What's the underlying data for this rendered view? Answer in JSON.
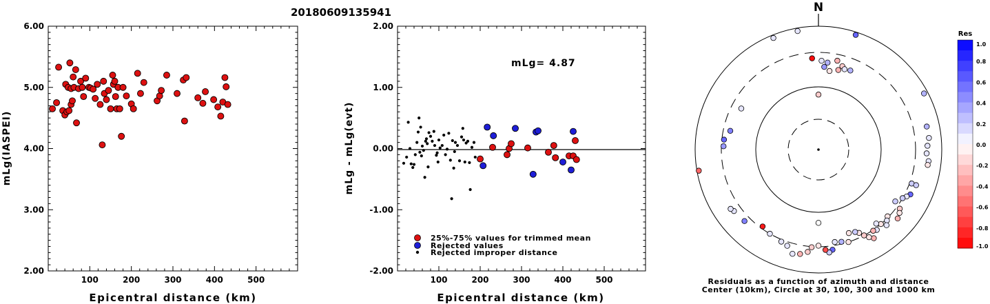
{
  "figure": {
    "title": "20180609135941"
  },
  "colors": {
    "red": "#dd1111",
    "blue": "#1e1ed8",
    "black": "#000000"
  },
  "chart_data": [
    {
      "type": "scatter",
      "ylabel": "mLg(IASPEI)",
      "xlabel": "Epicentral distance (km)",
      "xlim": [
        0,
        600
      ],
      "ylim": [
        2,
        6
      ],
      "xticks": [
        "100",
        "200",
        "300",
        "400",
        "500"
      ],
      "yticks": [
        "2.00",
        "3.00",
        "4.00",
        "5.00",
        "6.00"
      ],
      "points": [
        [
          10,
          4.65
        ],
        [
          20,
          4.75
        ],
        [
          25,
          5.33
        ],
        [
          35,
          4.62
        ],
        [
          40,
          4.55
        ],
        [
          42,
          5.05
        ],
        [
          45,
          4.6
        ],
        [
          48,
          5.0
        ],
        [
          50,
          4.62
        ],
        [
          52,
          5.4
        ],
        [
          55,
          4.98
        ],
        [
          55,
          4.72
        ],
        [
          58,
          4.78
        ],
        [
          60,
          5.17
        ],
        [
          62,
          5.0
        ],
        [
          66,
          5.29
        ],
        [
          68,
          4.42
        ],
        [
          73,
          4.98
        ],
        [
          78,
          5.1
        ],
        [
          82,
          5.0
        ],
        [
          85,
          4.85
        ],
        [
          90,
          5.15
        ],
        [
          98,
          5.0
        ],
        [
          102,
          4.99
        ],
        [
          108,
          4.97
        ],
        [
          113,
          4.82
        ],
        [
          118,
          5.05
        ],
        [
          125,
          4.72
        ],
        [
          130,
          4.06
        ],
        [
          133,
          5.1
        ],
        [
          135,
          4.9
        ],
        [
          140,
          4.8
        ],
        [
          145,
          4.95
        ],
        [
          150,
          4.65
        ],
        [
          155,
          5.2
        ],
        [
          157,
          5.05
        ],
        [
          160,
          5.1
        ],
        [
          162,
          4.85
        ],
        [
          165,
          4.65
        ],
        [
          168,
          5.0
        ],
        [
          172,
          4.65
        ],
        [
          176,
          4.2
        ],
        [
          180,
          5.0
        ],
        [
          188,
          4.86
        ],
        [
          200,
          4.73
        ],
        [
          205,
          4.65
        ],
        [
          215,
          5.23
        ],
        [
          222,
          4.9
        ],
        [
          230,
          5.08
        ],
        [
          262,
          4.78
        ],
        [
          268,
          4.86
        ],
        [
          272,
          4.95
        ],
        [
          285,
          5.2
        ],
        [
          310,
          4.9
        ],
        [
          325,
          5.12
        ],
        [
          328,
          4.45
        ],
        [
          332,
          5.16
        ],
        [
          360,
          4.83
        ],
        [
          372,
          4.74
        ],
        [
          378,
          4.93
        ],
        [
          398,
          4.8
        ],
        [
          408,
          4.68
        ],
        [
          415,
          4.53
        ],
        [
          420,
          4.76
        ],
        [
          425,
          5.16
        ],
        [
          428,
          5.01
        ],
        [
          432,
          4.72
        ]
      ]
    },
    {
      "type": "scatter",
      "ylabel": "mLg - mLg(evt)",
      "xlabel": "Epicentral distance (km)",
      "xlim": [
        0,
        600
      ],
      "ylim": [
        -2,
        2
      ],
      "xticks": [
        "100",
        "200",
        "300",
        "400",
        "500"
      ],
      "yticks": [
        "-2.00",
        "-1.00",
        "0.00",
        "1.00",
        "2.00"
      ],
      "annotation": "mLg= 4.87",
      "legend": [
        "25%-75% values for trimmed mean",
        "Rejected values",
        "Rejected improper distance"
      ],
      "series": [
        {
          "name": "25%-75% values for trimmed mean",
          "color": "red",
          "points": [
            [
              200,
              -0.17
            ],
            [
              230,
              0.02
            ],
            [
              265,
              -0.1
            ],
            [
              270,
              0.0
            ],
            [
              275,
              0.08
            ],
            [
              315,
              0.01
            ],
            [
              365,
              -0.06
            ],
            [
              378,
              0.05
            ],
            [
              382,
              -0.15
            ],
            [
              415,
              -0.12
            ],
            [
              425,
              -0.12
            ],
            [
              430,
              0.13
            ],
            [
              433,
              -0.18
            ]
          ]
        },
        {
          "name": "Rejected values",
          "color": "blue",
          "points": [
            [
              207,
              -0.28
            ],
            [
              217,
              0.35
            ],
            [
              232,
              0.21
            ],
            [
              285,
              0.33
            ],
            [
              335,
              0.27
            ],
            [
              340,
              0.29
            ],
            [
              400,
              -0.22
            ],
            [
              420,
              -0.35
            ],
            [
              425,
              0.28
            ],
            [
              328,
              -0.42
            ]
          ]
        },
        {
          "name": "Rejected improper distance",
          "color": "black",
          "points": [
            [
              15,
              -0.24
            ],
            [
              22,
              -0.14
            ],
            [
              26,
              0.43
            ],
            [
              30,
              0.0
            ],
            [
              33,
              -0.25
            ],
            [
              37,
              -0.31
            ],
            [
              40,
              -0.26
            ],
            [
              43,
              -0.1
            ],
            [
              47,
              0.1
            ],
            [
              50,
              0.27
            ],
            [
              52,
              0.5
            ],
            [
              54,
              -0.06
            ],
            [
              56,
              0.35
            ],
            [
              58,
              -0.12
            ],
            [
              60,
              0.04
            ],
            [
              63,
              -0.03
            ],
            [
              66,
              -0.47
            ],
            [
              68,
              0.12
            ],
            [
              70,
              0.16
            ],
            [
              72,
              0.08
            ],
            [
              74,
              -0.3
            ],
            [
              76,
              0.26
            ],
            [
              80,
              0.2
            ],
            [
              84,
              0.12
            ],
            [
              88,
              0.28
            ],
            [
              90,
              0.05
            ],
            [
              94,
              -0.11
            ],
            [
              96,
              -0.07
            ],
            [
              98,
              -0.22
            ],
            [
              100,
              0.14
            ],
            [
              103,
              0.01
            ],
            [
              108,
              0.05
            ],
            [
              112,
              0.22
            ],
            [
              116,
              -0.1
            ],
            [
              120,
              -0.01
            ],
            [
              124,
              0.25
            ],
            [
              128,
              -0.19
            ],
            [
              131,
              -0.82
            ],
            [
              133,
              0.13
            ],
            [
              136,
              -0.32
            ],
            [
              138,
              -0.05
            ],
            [
              140,
              0.1
            ],
            [
              145,
              0.05
            ],
            [
              150,
              -0.2
            ],
            [
              155,
              0.19
            ],
            [
              158,
              0.33
            ],
            [
              160,
              0.14
            ],
            [
              163,
              -0.22
            ],
            [
              166,
              0.09
            ],
            [
              170,
              0.12
            ],
            [
              174,
              -0.23
            ],
            [
              176,
              -0.67
            ],
            [
              180,
              0.02
            ],
            [
              185,
              0.1
            ],
            [
              188,
              -0.14
            ]
          ]
        }
      ]
    },
    {
      "type": "scatter",
      "subtype": "polar",
      "north_label": "N",
      "caption": [
        "Residuals as a function of azimuth and distance",
        "Center (10km), Circle at 30, 100, 300 and 1000 km"
      ],
      "colorbar_title": "Res",
      "colorbar_ticks": [
        "1.0",
        "0.8",
        "0.6",
        "0.4",
        "0.2",
        "0.0",
        "-0.2",
        "-0.4",
        "-0.6",
        "-0.8",
        "-1.0"
      ],
      "colorbar_range": [
        -1,
        1
      ],
      "note": "points given as [azimuth_deg_from_north, distance_km, residual]",
      "points": [
        [
          356,
          250,
          -0.95
        ],
        [
          2,
          230,
          0.1
        ],
        [
          6,
          220,
          0.3
        ],
        [
          4,
          190,
          0.4
        ],
        [
          12,
          245,
          -0.3
        ],
        [
          16,
          215,
          -0.2
        ],
        [
          22,
          205,
          0.3
        ],
        [
          18,
          200,
          0.1
        ],
        [
          14,
          185,
          -0.3
        ],
        [
          8,
          170,
          -0.1
        ],
        [
          0,
          75,
          -0.2
        ],
        [
          338,
          870,
          0.1
        ],
        [
          350,
          870,
          0.1
        ],
        [
          18,
          880,
          0.6
        ],
        [
          62,
          840,
          0.3
        ],
        [
          78,
          560,
          0.3
        ],
        [
          84,
          570,
          0.1
        ],
        [
          88,
          520,
          0.1
        ],
        [
          96,
          560,
          0.1
        ],
        [
          98,
          550,
          -0.1
        ],
        [
          92,
          500,
          0.1
        ],
        [
          110,
          330,
          0.2
        ],
        [
          110,
          410,
          0.2
        ],
        [
          116,
          380,
          0.6
        ],
        [
          118,
          340,
          0.1
        ],
        [
          120,
          300,
          0.2
        ],
        [
          124,
          260,
          0.2
        ],
        [
          126,
          350,
          -0.2
        ],
        [
          128,
          390,
          -0.1
        ],
        [
          131,
          430,
          -0.3
        ],
        [
          134,
          290,
          -0.1
        ],
        [
          136,
          320,
          0.1
        ],
        [
          138,
          370,
          0.1
        ],
        [
          140,
          300,
          -0.1
        ],
        [
          142,
          270,
          0.1
        ],
        [
          144,
          330,
          0.1
        ],
        [
          146,
          310,
          -0.3
        ],
        [
          148,
          420,
          -0.3
        ],
        [
          150,
          360,
          -0.1
        ],
        [
          152,
          300,
          -0.2
        ],
        [
          154,
          260,
          -0.1
        ],
        [
          156,
          240,
          0.2
        ],
        [
          160,
          230,
          -0.1
        ],
        [
          162,
          300,
          -0.1
        ],
        [
          166,
          280,
          0.3
        ],
        [
          170,
          270,
          0.1
        ],
        [
          172,
          360,
          0.6
        ],
        [
          174,
          400,
          0.2
        ],
        [
          176,
          350,
          -0.7
        ],
        [
          180,
          290,
          -0.1
        ],
        [
          180,
          140,
          0.0
        ],
        [
          184,
          310,
          -0.2
        ],
        [
          186,
          390,
          -0.2
        ],
        [
          190,
          450,
          -0.3
        ],
        [
          194,
          480,
          0.1
        ],
        [
          198,
          360,
          0.1
        ],
        [
          202,
          330,
          0.1
        ],
        [
          210,
          300,
          0.1
        ],
        [
          216,
          280,
          -0.9
        ],
        [
          226,
          390,
          0.5
        ],
        [
          234,
          420,
          0.1
        ],
        [
          236,
          450,
          0.1
        ],
        [
          260,
          920,
          -0.6
        ],
        [
          272,
          280,
          0.4
        ],
        [
          276,
          280,
          0.6
        ],
        [
          282,
          240,
          0.5
        ],
        [
          298,
          220,
          0.1
        ]
      ]
    }
  ]
}
